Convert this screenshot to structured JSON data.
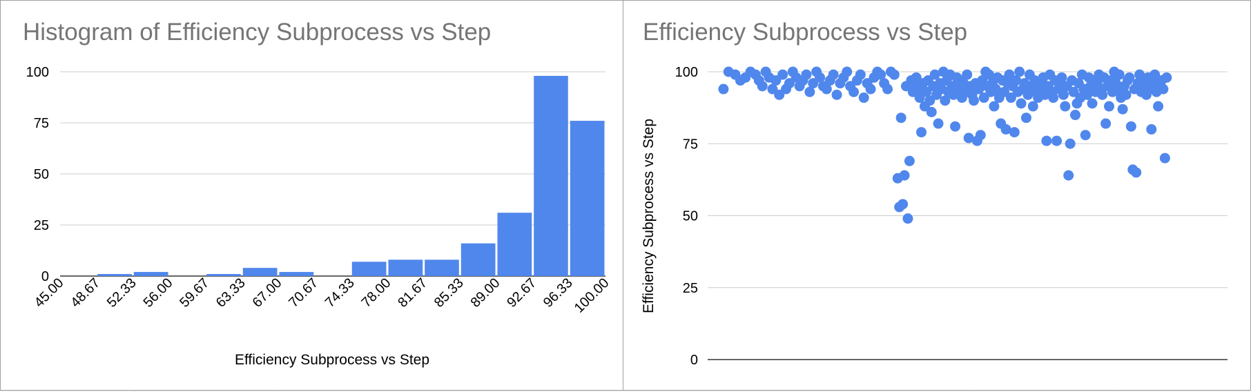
{
  "colors": {
    "series": "#5087ec",
    "grid": "#cccccc",
    "axis": "#333333",
    "title": "#757575"
  },
  "left_chart": {
    "title": "Histogram of Efficiency Subprocess vs Step",
    "xlabel": "Efficiency Subprocess vs Step"
  },
  "right_chart": {
    "title": "Efficiency Subprocess vs Step",
    "ylabel": "Efficiency Subprocess vs Step"
  },
  "chart_data": [
    {
      "type": "bar",
      "title": "Histogram of Efficiency Subprocess vs Step",
      "xlabel": "Efficiency Subprocess vs Step",
      "ylabel": "",
      "x_ticks": [
        "45.00",
        "48.67",
        "52.33",
        "56.00",
        "59.67",
        "63.33",
        "67.00",
        "70.67",
        "74.33",
        "78.00",
        "81.67",
        "85.33",
        "89.00",
        "92.67",
        "96.33",
        "100.00"
      ],
      "bin_edges": [
        45.0,
        48.67,
        52.33,
        56.0,
        59.67,
        63.33,
        67.0,
        70.67,
        74.33,
        78.0,
        81.67,
        85.33,
        89.0,
        92.67,
        96.33,
        100.0
      ],
      "values": [
        0,
        1,
        2,
        0,
        1,
        4,
        2,
        0,
        7,
        8,
        8,
        16,
        31,
        98,
        76
      ],
      "y_ticks": [
        "0",
        "25",
        "50",
        "75",
        "100"
      ],
      "ylim": [
        0,
        100
      ],
      "grid": true,
      "legend": "none"
    },
    {
      "type": "scatter",
      "title": "Efficiency Subprocess vs Step",
      "xlabel": "",
      "ylabel": "Efficiency Subprocess vs Step",
      "y_ticks": [
        "0",
        "25",
        "50",
        "75",
        "100"
      ],
      "ylim": [
        0,
        100
      ],
      "xlim": [
        0,
        300
      ],
      "grid": true,
      "legend": "none",
      "points": [
        [
          2,
          94
        ],
        [
          5,
          100
        ],
        [
          9,
          99
        ],
        [
          12,
          97
        ],
        [
          15,
          98
        ],
        [
          18,
          100
        ],
        [
          21,
          99
        ],
        [
          23,
          97
        ],
        [
          25,
          95
        ],
        [
          27,
          100
        ],
        [
          29,
          98
        ],
        [
          31,
          94
        ],
        [
          33,
          97
        ],
        [
          35,
          92
        ],
        [
          37,
          99
        ],
        [
          39,
          94
        ],
        [
          41,
          96
        ],
        [
          43,
          100
        ],
        [
          45,
          98
        ],
        [
          47,
          95
        ],
        [
          49,
          97
        ],
        [
          51,
          99
        ],
        [
          53,
          93
        ],
        [
          55,
          96
        ],
        [
          57,
          100
        ],
        [
          59,
          98
        ],
        [
          61,
          95
        ],
        [
          63,
          94
        ],
        [
          65,
          97
        ],
        [
          67,
          99
        ],
        [
          69,
          92
        ],
        [
          71,
          96
        ],
        [
          73,
          98
        ],
        [
          75,
          100
        ],
        [
          77,
          95
        ],
        [
          79,
          93
        ],
        [
          81,
          97
        ],
        [
          83,
          99
        ],
        [
          85,
          91
        ],
        [
          87,
          96
        ],
        [
          89,
          94
        ],
        [
          91,
          98
        ],
        [
          93,
          100
        ],
        [
          95,
          99
        ],
        [
          97,
          96
        ],
        [
          99,
          94
        ],
        [
          101,
          100
        ],
        [
          103,
          99
        ],
        [
          105,
          63
        ],
        [
          106,
          53
        ],
        [
          107,
          84
        ],
        [
          108,
          54
        ],
        [
          109,
          64
        ],
        [
          110,
          95
        ],
        [
          111,
          49
        ],
        [
          112,
          69
        ],
        [
          113,
          97
        ],
        [
          114,
          93
        ],
        [
          115,
          96
        ],
        [
          116,
          98
        ],
        [
          117,
          94
        ],
        [
          118,
          91
        ],
        [
          119,
          79
        ],
        [
          120,
          96
        ],
        [
          121,
          88
        ],
        [
          122,
          93
        ],
        [
          123,
          97
        ],
        [
          124,
          90
        ],
        [
          125,
          86
        ],
        [
          126,
          95
        ],
        [
          127,
          99
        ],
        [
          128,
          92
        ],
        [
          129,
          82
        ],
        [
          130,
          96
        ],
        [
          131,
          94
        ],
        [
          132,
          100
        ],
        [
          133,
          90
        ],
        [
          134,
          97
        ],
        [
          135,
          93
        ],
        [
          136,
          99
        ],
        [
          137,
          95
        ],
        [
          138,
          92
        ],
        [
          139,
          81
        ],
        [
          140,
          98
        ],
        [
          141,
          94
        ],
        [
          142,
          97
        ],
        [
          143,
          91
        ],
        [
          144,
          96
        ],
        [
          145,
          93
        ],
        [
          146,
          99
        ],
        [
          147,
          77
        ],
        [
          148,
          95
        ],
        [
          149,
          92
        ],
        [
          150,
          90
        ],
        [
          151,
          96
        ],
        [
          152,
          76
        ],
        [
          153,
          94
        ],
        [
          154,
          78
        ],
        [
          155,
          97
        ],
        [
          156,
          91
        ],
        [
          157,
          100
        ],
        [
          158,
          95
        ],
        [
          159,
          99
        ],
        [
          160,
          93
        ],
        [
          161,
          96
        ],
        [
          162,
          88
        ],
        [
          163,
          94
        ],
        [
          164,
          98
        ],
        [
          165,
          91
        ],
        [
          166,
          82
        ],
        [
          167,
          97
        ],
        [
          168,
          93
        ],
        [
          169,
          80
        ],
        [
          170,
          96
        ],
        [
          171,
          99
        ],
        [
          172,
          91
        ],
        [
          173,
          95
        ],
        [
          174,
          79
        ],
        [
          175,
          97
        ],
        [
          176,
          93
        ],
        [
          177,
          100
        ],
        [
          178,
          89
        ],
        [
          179,
          94
        ],
        [
          180,
          96
        ],
        [
          181,
          84
        ],
        [
          182,
          92
        ],
        [
          183,
          99
        ],
        [
          184,
          95
        ],
        [
          185,
          88
        ],
        [
          186,
          97
        ],
        [
          187,
          93
        ],
        [
          188,
          91
        ],
        [
          189,
          96
        ],
        [
          190,
          94
        ],
        [
          191,
          98
        ],
        [
          192,
          92
        ],
        [
          193,
          76
        ],
        [
          194,
          95
        ],
        [
          195,
          99
        ],
        [
          196,
          93
        ],
        [
          197,
          91
        ],
        [
          198,
          97
        ],
        [
          199,
          76
        ],
        [
          200,
          94
        ],
        [
          201,
          96
        ],
        [
          202,
          98
        ],
        [
          203,
          92
        ],
        [
          204,
          88
        ],
        [
          205,
          95
        ],
        [
          206,
          64
        ],
        [
          207,
          75
        ],
        [
          208,
          97
        ],
        [
          209,
          93
        ],
        [
          210,
          85
        ],
        [
          211,
          89
        ],
        [
          212,
          96
        ],
        [
          213,
          91
        ],
        [
          214,
          99
        ],
        [
          215,
          94
        ],
        [
          216,
          78
        ],
        [
          217,
          92
        ],
        [
          218,
          98
        ],
        [
          219,
          95
        ],
        [
          220,
          89
        ],
        [
          221,
          97
        ],
        [
          222,
          93
        ],
        [
          223,
          96
        ],
        [
          224,
          99
        ],
        [
          225,
          94
        ],
        [
          226,
          92
        ],
        [
          227,
          98
        ],
        [
          228,
          82
        ],
        [
          229,
          95
        ],
        [
          230,
          88
        ],
        [
          231,
          97
        ],
        [
          232,
          93
        ],
        [
          233,
          100
        ],
        [
          234,
          96
        ],
        [
          235,
          94
        ],
        [
          236,
          99
        ],
        [
          237,
          91
        ],
        [
          238,
          87
        ],
        [
          239,
          95
        ],
        [
          240,
          92
        ],
        [
          241,
          97
        ],
        [
          242,
          98
        ],
        [
          243,
          81
        ],
        [
          244,
          66
        ],
        [
          245,
          94
        ],
        [
          246,
          65
        ],
        [
          247,
          96
        ],
        [
          248,
          99
        ],
        [
          249,
          93
        ],
        [
          250,
          97
        ],
        [
          251,
          95
        ],
        [
          252,
          92
        ],
        [
          253,
          98
        ],
        [
          254,
          94
        ],
        [
          255,
          80
        ],
        [
          256,
          96
        ],
        [
          257,
          99
        ],
        [
          258,
          93
        ],
        [
          259,
          88
        ],
        [
          260,
          95
        ],
        [
          261,
          97
        ],
        [
          262,
          94
        ],
        [
          263,
          70
        ],
        [
          264,
          98
        ]
      ]
    }
  ]
}
